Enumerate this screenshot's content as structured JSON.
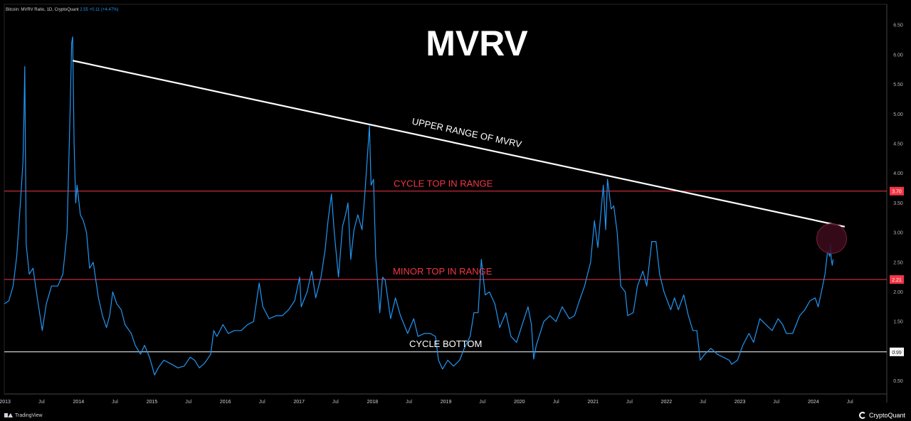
{
  "header": {
    "symbol": "Bitcoin: MVRV Ratio, 1D, CryptoQuant",
    "value": "2.55",
    "change": "+0.11 (+4.47%)"
  },
  "footer": {
    "left_brand": "TradingView",
    "right_brand": "CryptoQuant"
  },
  "colors": {
    "background": "#000000",
    "series": "#2196f3",
    "red_line": "#f23645",
    "white_line": "#ffffff",
    "axis_text": "#b2b5be",
    "grid": "#262626",
    "circle_fill": "#3a0b1c"
  },
  "chart_data": {
    "type": "line",
    "title": "MVRV",
    "xlabel": "",
    "ylabel": "",
    "x_range": [
      "2012-12-28",
      "2024-12-31"
    ],
    "ylim": [
      0.28,
      6.85
    ],
    "grid": false,
    "y_ticks": [
      "0.50",
      "1.00",
      "1.50",
      "2.00",
      "2.50",
      "3.00",
      "3.50",
      "4.00",
      "4.50",
      "5.00",
      "5.50",
      "6.00",
      "6.50"
    ],
    "x_ticks": [
      {
        "label": "2013",
        "date": "2013-01-01"
      },
      {
        "label": "Jul",
        "date": "2013-07-01"
      },
      {
        "label": "2014",
        "date": "2014-01-01"
      },
      {
        "label": "Jul",
        "date": "2014-07-01"
      },
      {
        "label": "2015",
        "date": "2015-01-01"
      },
      {
        "label": "Jul",
        "date": "2015-07-01"
      },
      {
        "label": "2016",
        "date": "2016-01-01"
      },
      {
        "label": "Jul",
        "date": "2016-07-01"
      },
      {
        "label": "2017",
        "date": "2017-01-01"
      },
      {
        "label": "Jul",
        "date": "2017-07-01"
      },
      {
        "label": "2018",
        "date": "2018-01-01"
      },
      {
        "label": "Jul",
        "date": "2018-07-01"
      },
      {
        "label": "2019",
        "date": "2019-01-01"
      },
      {
        "label": "Jul",
        "date": "2019-07-01"
      },
      {
        "label": "2020",
        "date": "2020-01-01"
      },
      {
        "label": "Jul",
        "date": "2020-07-01"
      },
      {
        "label": "2021",
        "date": "2021-01-01"
      },
      {
        "label": "Jul",
        "date": "2021-07-01"
      },
      {
        "label": "2022",
        "date": "2022-01-01"
      },
      {
        "label": "Jul",
        "date": "2022-07-01"
      },
      {
        "label": "2023",
        "date": "2023-01-01"
      },
      {
        "label": "Jul",
        "date": "2023-07-01"
      },
      {
        "label": "2024",
        "date": "2024-01-01"
      },
      {
        "label": "Jul",
        "date": "2024-07-01"
      }
    ],
    "series": [
      {
        "color": "#2196f3",
        "points": [
          [
            "2012-12-28",
            1.8
          ],
          [
            "2013-01-20",
            1.85
          ],
          [
            "2013-02-10",
            2.1
          ],
          [
            "2013-02-28",
            2.6
          ],
          [
            "2013-03-20",
            3.6
          ],
          [
            "2013-03-31",
            4.2
          ],
          [
            "2013-04-05",
            5.0
          ],
          [
            "2013-04-09",
            5.8
          ],
          [
            "2013-04-16",
            2.8
          ],
          [
            "2013-05-01",
            2.3
          ],
          [
            "2013-05-20",
            2.4
          ],
          [
            "2013-06-10",
            1.9
          ],
          [
            "2013-07-05",
            1.35
          ],
          [
            "2013-07-25",
            1.8
          ],
          [
            "2013-08-20",
            2.1
          ],
          [
            "2013-09-20",
            2.1
          ],
          [
            "2013-10-15",
            2.3
          ],
          [
            "2013-11-05",
            3.0
          ],
          [
            "2013-11-20",
            5.0
          ],
          [
            "2013-11-28",
            6.2
          ],
          [
            "2013-12-03",
            6.3
          ],
          [
            "2013-12-10",
            4.5
          ],
          [
            "2013-12-18",
            3.5
          ],
          [
            "2013-12-25",
            3.8
          ],
          [
            "2014-01-10",
            3.3
          ],
          [
            "2014-01-25",
            3.2
          ],
          [
            "2014-02-10",
            3.0
          ],
          [
            "2014-02-25",
            2.4
          ],
          [
            "2014-03-15",
            2.5
          ],
          [
            "2014-04-10",
            1.9
          ],
          [
            "2014-04-30",
            1.6
          ],
          [
            "2014-05-20",
            1.4
          ],
          [
            "2014-06-05",
            1.6
          ],
          [
            "2014-06-20",
            2.0
          ],
          [
            "2014-07-10",
            1.8
          ],
          [
            "2014-08-01",
            1.7
          ],
          [
            "2014-08-20",
            1.45
          ],
          [
            "2014-09-20",
            1.3
          ],
          [
            "2014-10-10",
            1.1
          ],
          [
            "2014-11-05",
            0.95
          ],
          [
            "2014-11-25",
            1.1
          ],
          [
            "2014-12-20",
            0.9
          ],
          [
            "2015-01-14",
            0.6
          ],
          [
            "2015-02-01",
            0.72
          ],
          [
            "2015-03-01",
            0.85
          ],
          [
            "2015-04-10",
            0.78
          ],
          [
            "2015-05-10",
            0.72
          ],
          [
            "2015-06-10",
            0.75
          ],
          [
            "2015-07-10",
            0.9
          ],
          [
            "2015-08-01",
            0.85
          ],
          [
            "2015-08-25",
            0.72
          ],
          [
            "2015-09-20",
            0.8
          ],
          [
            "2015-10-20",
            0.95
          ],
          [
            "2015-11-04",
            1.35
          ],
          [
            "2015-11-20",
            1.25
          ],
          [
            "2015-12-20",
            1.45
          ],
          [
            "2016-01-15",
            1.3
          ],
          [
            "2016-02-15",
            1.35
          ],
          [
            "2016-03-20",
            1.35
          ],
          [
            "2016-04-20",
            1.45
          ],
          [
            "2016-05-20",
            1.5
          ],
          [
            "2016-06-17",
            2.15
          ],
          [
            "2016-07-05",
            1.75
          ],
          [
            "2016-08-05",
            1.55
          ],
          [
            "2016-09-10",
            1.6
          ],
          [
            "2016-10-10",
            1.6
          ],
          [
            "2016-11-10",
            1.7
          ],
          [
            "2016-12-10",
            1.85
          ],
          [
            "2017-01-04",
            2.25
          ],
          [
            "2017-01-12",
            1.75
          ],
          [
            "2017-02-10",
            2.0
          ],
          [
            "2017-03-05",
            2.35
          ],
          [
            "2017-03-25",
            1.9
          ],
          [
            "2017-04-20",
            2.25
          ],
          [
            "2017-05-10",
            2.7
          ],
          [
            "2017-05-25",
            3.2
          ],
          [
            "2017-06-11",
            3.65
          ],
          [
            "2017-06-25",
            3.0
          ],
          [
            "2017-07-16",
            2.25
          ],
          [
            "2017-08-05",
            3.1
          ],
          [
            "2017-08-20",
            3.3
          ],
          [
            "2017-09-01",
            3.5
          ],
          [
            "2017-09-15",
            2.55
          ],
          [
            "2017-10-01",
            3.05
          ],
          [
            "2017-10-20",
            3.3
          ],
          [
            "2017-11-10",
            3.05
          ],
          [
            "2017-11-25",
            3.7
          ],
          [
            "2017-12-07",
            4.3
          ],
          [
            "2017-12-17",
            4.8
          ],
          [
            "2017-12-25",
            3.8
          ],
          [
            "2018-01-06",
            3.9
          ],
          [
            "2018-01-17",
            2.6
          ],
          [
            "2018-02-06",
            1.65
          ],
          [
            "2018-02-20",
            2.25
          ],
          [
            "2018-03-05",
            2.2
          ],
          [
            "2018-04-01",
            1.55
          ],
          [
            "2018-04-25",
            1.9
          ],
          [
            "2018-05-20",
            1.6
          ],
          [
            "2018-06-25",
            1.3
          ],
          [
            "2018-07-25",
            1.55
          ],
          [
            "2018-08-15",
            1.25
          ],
          [
            "2018-09-15",
            1.3
          ],
          [
            "2018-10-15",
            1.3
          ],
          [
            "2018-11-10",
            1.25
          ],
          [
            "2018-11-25",
            0.85
          ],
          [
            "2018-12-15",
            0.7
          ],
          [
            "2019-01-10",
            0.85
          ],
          [
            "2019-02-08",
            0.75
          ],
          [
            "2019-03-10",
            0.85
          ],
          [
            "2019-04-02",
            1.05
          ],
          [
            "2019-05-01",
            1.25
          ],
          [
            "2019-05-20",
            1.65
          ],
          [
            "2019-06-10",
            1.65
          ],
          [
            "2019-06-26",
            2.55
          ],
          [
            "2019-07-15",
            1.95
          ],
          [
            "2019-08-05",
            2.0
          ],
          [
            "2019-09-01",
            1.8
          ],
          [
            "2019-09-25",
            1.4
          ],
          [
            "2019-10-26",
            1.65
          ],
          [
            "2019-11-20",
            1.25
          ],
          [
            "2019-12-18",
            1.15
          ],
          [
            "2020-01-20",
            1.5
          ],
          [
            "2020-02-13",
            1.75
          ],
          [
            "2020-03-01",
            1.45
          ],
          [
            "2020-03-12",
            0.87
          ],
          [
            "2020-03-25",
            1.1
          ],
          [
            "2020-05-01",
            1.5
          ],
          [
            "2020-06-01",
            1.6
          ],
          [
            "2020-07-01",
            1.5
          ],
          [
            "2020-08-01",
            1.75
          ],
          [
            "2020-09-05",
            1.55
          ],
          [
            "2020-10-01",
            1.6
          ],
          [
            "2020-10-25",
            1.85
          ],
          [
            "2020-11-20",
            2.1
          ],
          [
            "2020-12-20",
            2.5
          ],
          [
            "2021-01-08",
            3.2
          ],
          [
            "2021-01-25",
            2.75
          ],
          [
            "2021-02-21",
            3.8
          ],
          [
            "2021-03-05",
            3.05
          ],
          [
            "2021-03-14",
            3.9
          ],
          [
            "2021-04-01",
            3.4
          ],
          [
            "2021-04-14",
            3.45
          ],
          [
            "2021-05-01",
            3.0
          ],
          [
            "2021-05-19",
            2.1
          ],
          [
            "2021-06-10",
            2.0
          ],
          [
            "2021-06-22",
            1.6
          ],
          [
            "2021-07-20",
            1.65
          ],
          [
            "2021-08-10",
            2.1
          ],
          [
            "2021-09-06",
            2.35
          ],
          [
            "2021-09-25",
            2.1
          ],
          [
            "2021-10-20",
            2.85
          ],
          [
            "2021-11-10",
            2.85
          ],
          [
            "2021-11-28",
            2.3
          ],
          [
            "2021-12-20",
            2.0
          ],
          [
            "2022-01-22",
            1.7
          ],
          [
            "2022-02-10",
            1.9
          ],
          [
            "2022-03-01",
            1.7
          ],
          [
            "2022-03-28",
            1.95
          ],
          [
            "2022-04-20",
            1.6
          ],
          [
            "2022-05-12",
            1.35
          ],
          [
            "2022-06-01",
            1.35
          ],
          [
            "2022-06-18",
            0.85
          ],
          [
            "2022-07-10",
            0.95
          ],
          [
            "2022-08-10",
            1.05
          ],
          [
            "2022-09-10",
            0.95
          ],
          [
            "2022-10-10",
            0.9
          ],
          [
            "2022-11-09",
            0.85
          ],
          [
            "2022-11-21",
            0.78
          ],
          [
            "2022-12-20",
            0.85
          ],
          [
            "2023-01-15",
            1.1
          ],
          [
            "2023-02-15",
            1.3
          ],
          [
            "2023-03-10",
            1.15
          ],
          [
            "2023-04-10",
            1.55
          ],
          [
            "2023-05-10",
            1.45
          ],
          [
            "2023-06-10",
            1.35
          ],
          [
            "2023-07-10",
            1.55
          ],
          [
            "2023-08-01",
            1.45
          ],
          [
            "2023-08-20",
            1.3
          ],
          [
            "2023-09-20",
            1.3
          ],
          [
            "2023-10-25",
            1.6
          ],
          [
            "2023-11-20",
            1.7
          ],
          [
            "2023-12-15",
            1.85
          ],
          [
            "2024-01-10",
            1.9
          ],
          [
            "2024-01-25",
            1.75
          ],
          [
            "2024-02-10",
            2.0
          ],
          [
            "2024-02-28",
            2.3
          ],
          [
            "2024-03-12",
            2.7
          ],
          [
            "2024-03-22",
            2.6
          ],
          [
            "2024-03-26",
            2.8
          ],
          [
            "2024-03-30",
            2.55
          ],
          [
            "2024-04-04",
            2.45
          ],
          [
            "2024-04-08",
            2.55
          ]
        ]
      }
    ],
    "trendline": {
      "label": "UPPER RANGE OF MVRV",
      "from": [
        "2013-12-03",
        5.9
      ],
      "to": [
        "2024-06-05",
        3.1
      ],
      "color": "#ffffff"
    },
    "horizontal_lines": [
      {
        "label": "CYCLE TOP IN RANGE",
        "value": 3.7,
        "tag": "3.70",
        "color": "#f23645"
      },
      {
        "label": "MINOR TOP IN RANGE",
        "value": 2.21,
        "tag": "2.21",
        "color": "#f23645"
      },
      {
        "label": "CYCLE BOTTOM",
        "value": 0.99,
        "tag": "0.99",
        "color": "#ffffff"
      }
    ],
    "highlight_circle": {
      "center": [
        "2024-04-01",
        2.9
      ]
    }
  }
}
